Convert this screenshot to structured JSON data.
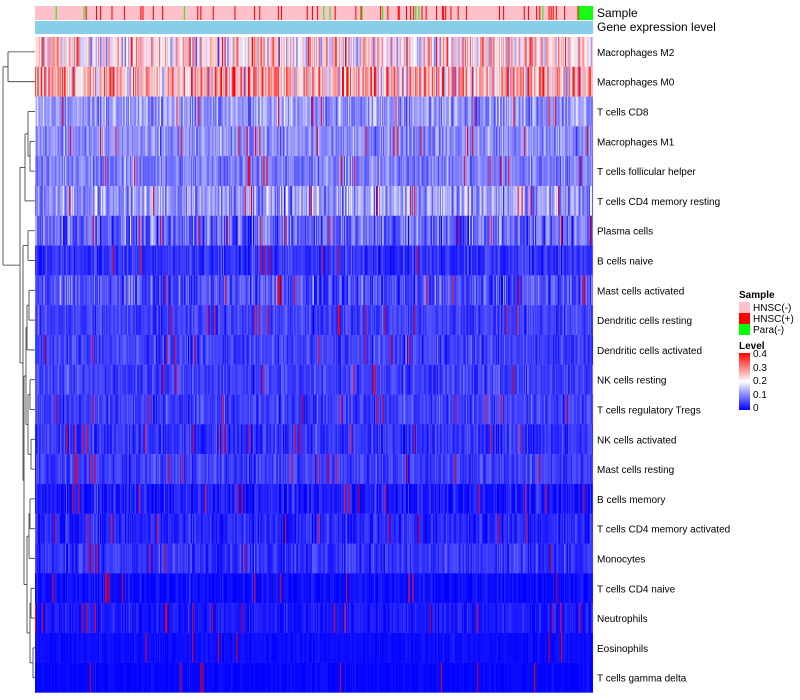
{
  "chart_data": {
    "type": "heatmap",
    "title": "",
    "annotation_tracks": [
      "Sample",
      "Gene expression level"
    ],
    "rows": [
      "Macrophages M2",
      "Macrophages M0",
      "T cells CD8",
      "Macrophages M1",
      "T cells follicular helper",
      "T cells CD4 memory resting",
      "Plasma cells",
      "B cells naive",
      "Mast cells activated",
      "Dendritic cells resting",
      "Dendritic cells activated",
      "NK cells resting",
      "T cells regulatory  Tregs",
      "NK cells activated",
      "Mast cells resting",
      "B cells memory",
      "T cells CD4 memory activated",
      "Monocytes",
      "T cells CD4 naive",
      "Neutrophils",
      "Eosinophils",
      "T cells gamma delta"
    ],
    "approx_row_mean_level": [
      0.22,
      0.26,
      0.12,
      0.11,
      0.1,
      0.12,
      0.08,
      0.04,
      0.06,
      0.05,
      0.05,
      0.05,
      0.05,
      0.04,
      0.05,
      0.02,
      0.03,
      0.04,
      0.01,
      0.02,
      0.01,
      0.005
    ],
    "approx_row_spread": [
      0.1,
      0.11,
      0.05,
      0.04,
      0.04,
      0.06,
      0.06,
      0.03,
      0.05,
      0.03,
      0.03,
      0.03,
      0.03,
      0.03,
      0.03,
      0.03,
      0.03,
      0.03,
      0.02,
      0.02,
      0.01,
      0.01
    ],
    "column_count": 540,
    "sample_legend": {
      "title": "Sample",
      "entries": [
        {
          "label": "HNSC(-)",
          "color": "#FFC0CB"
        },
        {
          "label": "HNSC(+)",
          "color": "#FF0000"
        },
        {
          "label": "Para(-)",
          "color": "#00FF00"
        }
      ]
    },
    "level_legend": {
      "title": "Level",
      "ticks": [
        "0.4",
        "0.3",
        "0.2",
        "0.1",
        "0"
      ],
      "min": 0,
      "max": 0.4,
      "colors": [
        "#0000FF",
        "#FFFFFF",
        "#FF0000"
      ]
    },
    "gene_expression_color": "#87CEEB"
  }
}
